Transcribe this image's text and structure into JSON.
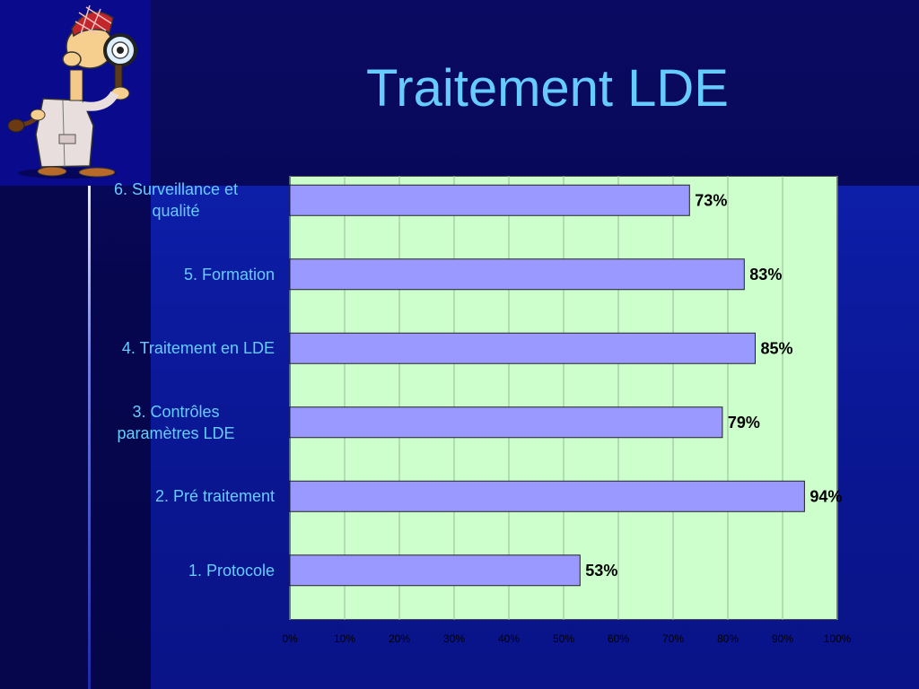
{
  "slide": {
    "title": "Traitement LDE"
  },
  "chart_data": {
    "type": "bar",
    "orientation": "horizontal",
    "categories": [
      "6. Surveillance et qualité",
      "5. Formation",
      "4. Traitement en LDE",
      "3. Contrôles paramètres LDE",
      "2. Pré traitement",
      "1. Protocole"
    ],
    "category_lines": [
      [
        "6. Surveillance et",
        "qualité"
      ],
      [
        "5. Formation"
      ],
      [
        "4. Traitement en LDE"
      ],
      [
        "3. Contrôles",
        "paramètres LDE"
      ],
      [
        "2. Pré traitement"
      ],
      [
        "1. Protocole"
      ]
    ],
    "values": [
      73,
      83,
      85,
      79,
      94,
      53
    ],
    "data_labels": [
      "73%",
      "83%",
      "85%",
      "79%",
      "94%",
      "53%"
    ],
    "xlim": [
      0,
      100
    ],
    "x_ticks": [
      "0%",
      "10%",
      "20%",
      "30%",
      "40%",
      "50%",
      "60%",
      "70%",
      "80%",
      "90%",
      "100%"
    ],
    "grid": true,
    "colors": {
      "bar": "#9999ff",
      "plot_bg": "#ccffcc",
      "label": "#66ccff",
      "title": "#66ccff"
    }
  }
}
